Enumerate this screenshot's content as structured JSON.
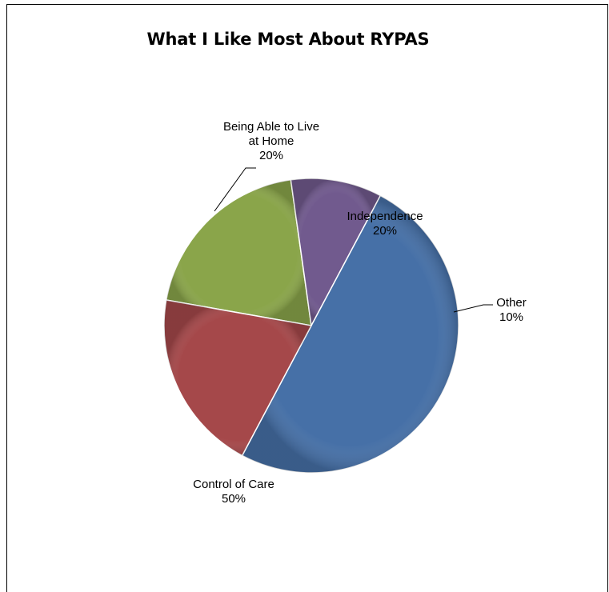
{
  "chart_data": {
    "type": "pie",
    "title": "What I Like Most About RYPAS",
    "slices": [
      {
        "label_lines": [
          "Independence"
        ],
        "value_label": "20%",
        "value": 20,
        "color": "#8aa54a"
      },
      {
        "label_lines": [
          "Other"
        ],
        "value_label": "10%",
        "value": 10,
        "color": "#715a8e"
      },
      {
        "label_lines": [
          "Control of Care"
        ],
        "value_label": "50%",
        "value": 50,
        "color": "#4670a7"
      },
      {
        "label_lines": [
          "Being Able to Live",
          "at Home"
        ],
        "value_label": "20%",
        "value": 20,
        "color": "#a5484a"
      }
    ],
    "legend": "none"
  }
}
